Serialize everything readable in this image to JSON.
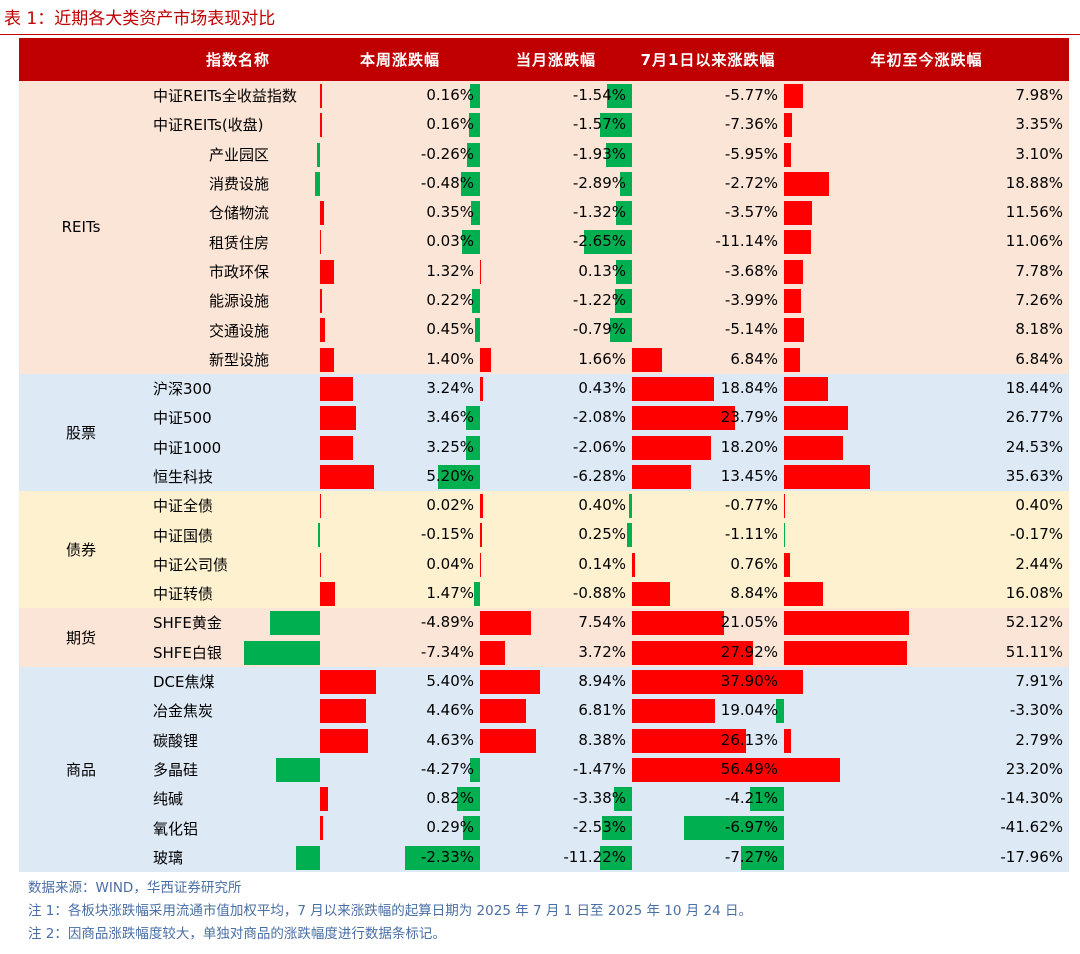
{
  "caption": "表 1：近期各大类资产市场表现对比",
  "columns": [
    "指数名称",
    "本周涨跌幅",
    "当月涨跌幅",
    "7月1日以来涨跌幅",
    "年初至今涨跌幅"
  ],
  "colors": {
    "header": "#c00000",
    "positive": "#ff0000",
    "negative": "#00b050",
    "reits_bg": "#fbe5d6",
    "stock_bg": "#dde9f5",
    "bond_bg": "#fdf1d0",
    "fut_bg": "#fbe5d6",
    "comm_bg": "#dde9f5"
  },
  "groups": [
    {
      "name": "REITs",
      "bg": "#fbe5d6",
      "rows": [
        {
          "name": "中证REITs全收益指数",
          "indent": 0,
          "week": 0.16,
          "month": -1.54,
          "jul": -5.77,
          "ytd": 7.98
        },
        {
          "name": "中证REITs(收盘)",
          "indent": 0,
          "week": 0.16,
          "month": -1.57,
          "jul": -7.36,
          "ytd": 3.35
        },
        {
          "name": "产业园区",
          "indent": 1,
          "week": -0.26,
          "month": -1.93,
          "jul": -5.95,
          "ytd": 3.1
        },
        {
          "name": "消费设施",
          "indent": 1,
          "week": -0.48,
          "month": -2.89,
          "jul": -2.72,
          "ytd": 18.88
        },
        {
          "name": "仓储物流",
          "indent": 1,
          "week": 0.35,
          "month": -1.32,
          "jul": -3.57,
          "ytd": 11.56
        },
        {
          "name": "租赁住房",
          "indent": 1,
          "week": 0.03,
          "month": -2.65,
          "jul": -11.14,
          "ytd": 11.06
        },
        {
          "name": "市政环保",
          "indent": 1,
          "week": 1.32,
          "month": 0.13,
          "jul": -3.68,
          "ytd": 7.78
        },
        {
          "name": "能源设施",
          "indent": 1,
          "week": 0.22,
          "month": -1.22,
          "jul": -3.99,
          "ytd": 7.26
        },
        {
          "name": "交通设施",
          "indent": 1,
          "week": 0.45,
          "month": -0.79,
          "jul": -5.14,
          "ytd": 8.18
        },
        {
          "name": "新型设施",
          "indent": 1,
          "week": 1.4,
          "month": 1.66,
          "jul": 6.84,
          "ytd": 6.84
        }
      ]
    },
    {
      "name": "股票",
      "bg": "#dde9f5",
      "rows": [
        {
          "name": "沪深300",
          "indent": 0,
          "week": 3.24,
          "month": 0.43,
          "jul": 18.84,
          "ytd": 18.44
        },
        {
          "name": "中证500",
          "indent": 0,
          "week": 3.46,
          "month": -2.08,
          "jul": 23.79,
          "ytd": 26.77
        },
        {
          "name": "中证1000",
          "indent": 0,
          "week": 3.25,
          "month": -2.06,
          "jul": 18.2,
          "ytd": 24.53
        },
        {
          "name": "恒生科技",
          "indent": 0,
          "week": 5.2,
          "month": -6.28,
          "jul": 13.45,
          "ytd": 35.63
        }
      ]
    },
    {
      "name": "债券",
      "bg": "#fdf1d0",
      "rows": [
        {
          "name": "中证全债",
          "indent": 0,
          "week": 0.02,
          "month": 0.4,
          "jul": -0.77,
          "ytd": 0.4
        },
        {
          "name": "中证国债",
          "indent": 0,
          "week": -0.15,
          "month": 0.25,
          "jul": -1.11,
          "ytd": -0.17
        },
        {
          "name": "中证公司债",
          "indent": 0,
          "week": 0.04,
          "month": 0.14,
          "jul": 0.76,
          "ytd": 2.44
        },
        {
          "name": "中证转债",
          "indent": 0,
          "week": 1.47,
          "month": -0.88,
          "jul": 8.84,
          "ytd": 16.08
        }
      ]
    },
    {
      "name": "期货",
      "bg": "#fbe5d6",
      "rows": [
        {
          "name": "SHFE黄金",
          "indent": 0,
          "week": -4.89,
          "month": 7.54,
          "jul": 21.05,
          "ytd": 52.12
        },
        {
          "name": "SHFE白银",
          "indent": 0,
          "week": -7.34,
          "month": 3.72,
          "jul": 27.92,
          "ytd": 51.11
        }
      ]
    },
    {
      "name": "商品",
      "bg": "#dde9f5",
      "rows": [
        {
          "name": "DCE焦煤",
          "indent": 0,
          "week": 5.4,
          "month": 8.94,
          "jul": 37.9,
          "ytd": 7.91
        },
        {
          "name": "冶金焦炭",
          "indent": 0,
          "week": 4.46,
          "month": 6.81,
          "jul": 19.04,
          "ytd": -3.3
        },
        {
          "name": "碳酸锂",
          "indent": 0,
          "week": 4.63,
          "month": 8.38,
          "jul": 26.13,
          "ytd": 2.79
        },
        {
          "name": "多晶硅",
          "indent": 0,
          "week": -4.27,
          "month": -1.47,
          "jul": 56.49,
          "ytd": 23.2
        },
        {
          "name": "纯碱",
          "indent": 0,
          "week": 0.82,
          "month": -3.38,
          "jul": -4.21,
          "ytd": -14.3
        },
        {
          "name": "氧化铝",
          "indent": 0,
          "week": 0.29,
          "month": -2.53,
          "jul": -6.97,
          "ytd": -41.62
        },
        {
          "name": "玻璃",
          "indent": 0,
          "week": -2.33,
          "month": -11.22,
          "jul": -7.27,
          "ytd": -17.96
        }
      ]
    }
  ],
  "notes": [
    "数据来源：WIND，华西证券研究所",
    "注 1：各板块涨跌幅采用流通市值加权平均，7 月以来涨跌幅的起算日期为 2025 年 7 月 1 日至 2025 年 10 月 24 日。",
    "注 2：因商品涨跌幅度较大，单独对商品的涨跌幅度进行数据条标记。"
  ]
}
